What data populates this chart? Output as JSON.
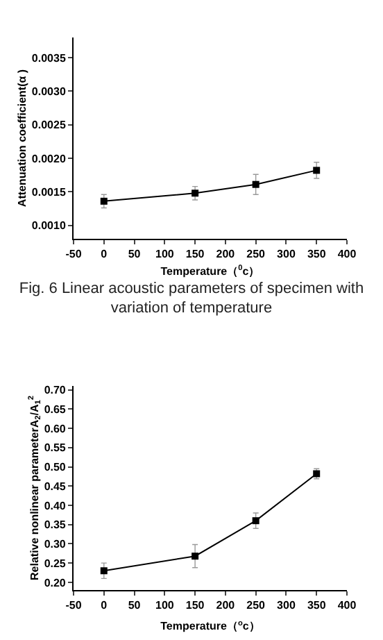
{
  "chart_data": [
    {
      "type": "line",
      "x": [
        0,
        150,
        250,
        350
      ],
      "values": [
        0.00136,
        0.00148,
        0.00161,
        0.00182
      ],
      "errors": [
        0.0001,
        0.0001,
        0.00015,
        0.00012
      ],
      "color": "#000000",
      "marker": "square",
      "line_style": "solid",
      "xlabel": "Temperature（$^{0}$c）",
      "ylabel": "Attenuation coefficient(α )",
      "xlim": [
        -50,
        400
      ],
      "xticks": [
        -50,
        0,
        50,
        100,
        150,
        200,
        250,
        300,
        350,
        400
      ],
      "ylim": [
        0.0008,
        0.0038
      ],
      "yticks": [
        {
          "value": 0.001,
          "label": "0.0010"
        },
        {
          "value": 0.0015,
          "label": "0.0015"
        },
        {
          "value": 0.002,
          "label": "0.0020"
        },
        {
          "value": 0.0025,
          "label": "0.0025"
        },
        {
          "value": 0.003,
          "label": "0.0030"
        },
        {
          "value": 0.0035,
          "label": "0.0035"
        }
      ],
      "grid": false,
      "annotations": [
        "Fig. 6  Linear  acoustic  parameters  of  specimen with  variation  of  temperature"
      ]
    },
    {
      "type": "line",
      "x": [
        0,
        150,
        250,
        350
      ],
      "values": [
        0.23,
        0.268,
        0.36,
        0.482
      ],
      "errors": [
        0.02,
        0.03,
        0.02,
        0.013
      ],
      "color": "#000000",
      "marker": "square",
      "line_style": "solid",
      "xlabel": "Temperature（$^{o}$c）",
      "ylabel": "Relative nonlinear parameterA$_{2}$/A$_{1}$$^{2}$",
      "xlim": [
        -50,
        400
      ],
      "xticks": [
        -50,
        0,
        50,
        100,
        150,
        200,
        250,
        300,
        350,
        400
      ],
      "ylim": [
        0.18,
        0.71
      ],
      "yticks": [
        {
          "value": 0.2,
          "label": "0.20"
        },
        {
          "value": 0.25,
          "label": "0.25"
        },
        {
          "value": 0.3,
          "label": "0.30"
        },
        {
          "value": 0.35,
          "label": "0.35"
        },
        {
          "value": 0.4,
          "label": "0.40"
        },
        {
          "value": 0.45,
          "label": "0.45"
        },
        {
          "value": 0.5,
          "label": "0.50"
        },
        {
          "value": 0.55,
          "label": "0.55"
        },
        {
          "value": 0.6,
          "label": "0.60"
        },
        {
          "value": 0.65,
          "label": "0.65"
        },
        {
          "value": 0.7,
          "label": "0.70"
        }
      ],
      "grid": false
    }
  ]
}
